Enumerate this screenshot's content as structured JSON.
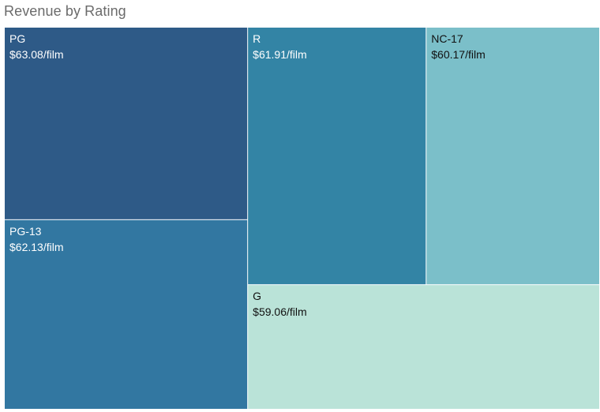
{
  "chart_data": {
    "type": "treemap",
    "title": "Revenue by Rating",
    "unit_suffix": "/film",
    "currency_prefix": "$",
    "tiles": [
      {
        "name": "PG",
        "value": 63.08,
        "value_label": "$63.08/film",
        "color": "#2e5a87",
        "text_color": "#ffffff"
      },
      {
        "name": "PG-13",
        "value": 62.13,
        "value_label": "$62.13/film",
        "color": "#3277a1",
        "text_color": "#ffffff"
      },
      {
        "name": "R",
        "value": 61.91,
        "value_label": "$61.91/film",
        "color": "#3384a5",
        "text_color": "#ffffff"
      },
      {
        "name": "NC-17",
        "value": 60.17,
        "value_label": "$60.17/film",
        "color": "#7bbfc9",
        "text_color": "#111111"
      },
      {
        "name": "G",
        "value": 59.06,
        "value_label": "$59.06/film",
        "color": "#bae3d8",
        "text_color": "#111111"
      }
    ]
  }
}
